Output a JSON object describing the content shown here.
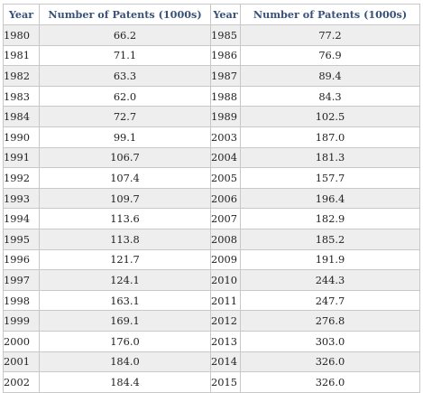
{
  "headers": [
    "Year",
    "Number of Patents (1000s)",
    "Year",
    "Number of Patents (1000s)"
  ],
  "rows": [
    [
      "1980",
      "66.2",
      "1985",
      "77.2"
    ],
    [
      "1981",
      "71.1",
      "1986",
      "76.9"
    ],
    [
      "1982",
      "63.3",
      "1987",
      "89.4"
    ],
    [
      "1983",
      "62.0",
      "1988",
      "84.3"
    ],
    [
      "1984",
      "72.7",
      "1989",
      "102.5"
    ],
    [
      "1990",
      "99.1",
      "2003",
      "187.0"
    ],
    [
      "1991",
      "106.7",
      "2004",
      "181.3"
    ],
    [
      "1992",
      "107.4",
      "2005",
      "157.7"
    ],
    [
      "1993",
      "109.7",
      "2006",
      "196.4"
    ],
    [
      "1994",
      "113.6",
      "2007",
      "182.9"
    ],
    [
      "1995",
      "113.8",
      "2008",
      "185.2"
    ],
    [
      "1996",
      "121.7",
      "2009",
      "191.9"
    ],
    [
      "1997",
      "124.1",
      "2010",
      "244.3"
    ],
    [
      "1998",
      "163.1",
      "2011",
      "247.7"
    ],
    [
      "1999",
      "169.1",
      "2012",
      "276.8"
    ],
    [
      "2000",
      "176.0",
      "2013",
      "303.0"
    ],
    [
      "2001",
      "184.0",
      "2014",
      "326.0"
    ],
    [
      "2002",
      "184.4",
      "2015",
      "326.0"
    ]
  ],
  "colors": {
    "header_text": "#3a5178",
    "stripe": "#eeeeee",
    "border": "#c8c8c8"
  }
}
